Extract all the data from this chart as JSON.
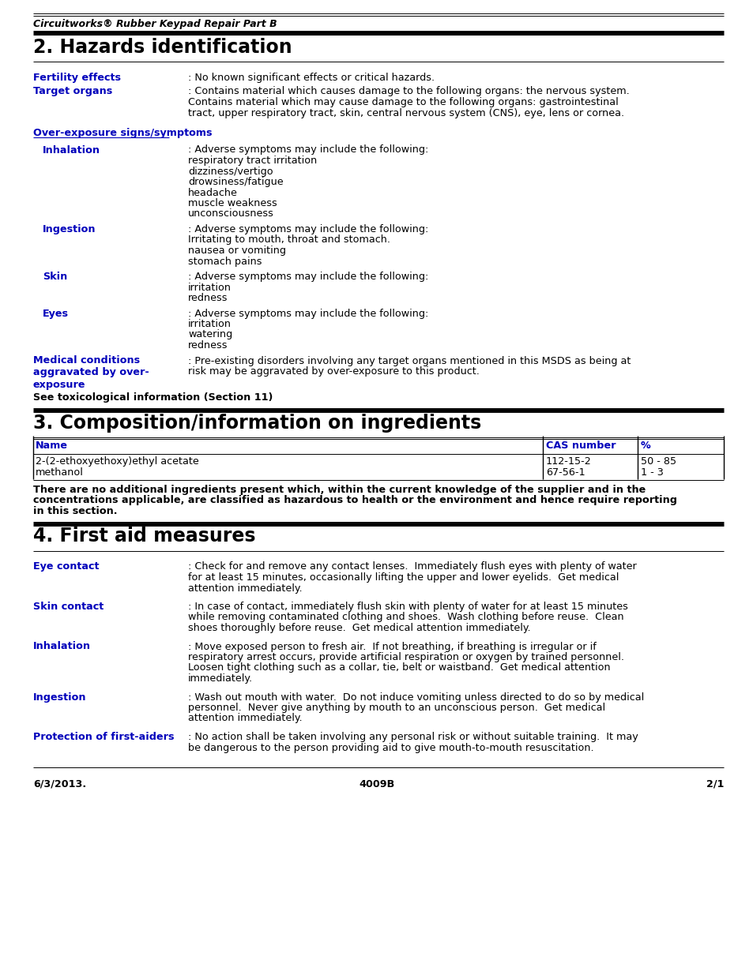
{
  "bg_color": "#ffffff",
  "text_color": "#000000",
  "blue_color": "#0000bb",
  "header_italic": "Circuitworks® Rubber Keypad Repair Part B",
  "section2_title": "2. Hazards identification",
  "section3_title": "3. Composition/information on ingredients",
  "section4_title": "4. First aid measures",
  "footer_left": "6/3/2013.",
  "footer_center": "4009B",
  "footer_right": "2/1",
  "table_rows": [
    [
      "2-(2-ethoxyethoxy)ethyl acetate",
      "112-15-2",
      "50 - 85"
    ],
    [
      "methanol",
      "67-56-1",
      "1 - 3"
    ]
  ],
  "table_note_lines": [
    "There are no additional ingredients present which, within the current knowledge of the supplier and in the",
    "concentrations applicable, are classified as hazardous to health or the environment and hence require reporting",
    "in this section."
  ],
  "overexposure_header": "Over-exposure signs/symptoms",
  "medical_label": "Medical conditions\naggravated by over-\nexposure",
  "medical_text_lines": [
    ": Pre-existing disorders involving any target organs mentioned in this MSDS as being at",
    "risk may be aggravated by over-exposure to this product."
  ],
  "see_tox": "See toxicological information (Section 11)",
  "fertility_label": "Fertility effects",
  "fertility_text": ": No known significant effects or critical hazards.",
  "target_label": "Target organs",
  "target_text_lines": [
    ": Contains material which causes damage to the following organs: the nervous system.",
    "Contains material which may cause damage to the following organs: gastrointestinal",
    "tract, upper respiratory tract, skin, central nervous system (CNS), eye, lens or cornea."
  ],
  "inhalation_label": "Inhalation",
  "inhalation_text_lines": [
    ": Adverse symptoms may include the following:",
    "respiratory tract irritation",
    "dizziness/vertigo",
    "drowsiness/fatigue",
    "headache",
    "muscle weakness",
    "unconsciousness"
  ],
  "ingestion_label": "Ingestion",
  "ingestion_text_lines": [
    ": Adverse symptoms may include the following:",
    "Irritating to mouth, throat and stomach.",
    "nausea or vomiting",
    "stomach pains"
  ],
  "skin_label": "Skin",
  "skin_text_lines": [
    ": Adverse symptoms may include the following:",
    "irritation",
    "redness"
  ],
  "eyes_label": "Eyes",
  "eyes_text_lines": [
    ": Adverse symptoms may include the following:",
    "irritation",
    "watering",
    "redness"
  ],
  "eye_contact_label": "Eye contact",
  "eye_contact_lines": [
    ": Check for and remove any contact lenses.  Immediately flush eyes with plenty of water",
    "for at least 15 minutes, occasionally lifting the upper and lower eyelids.  Get medical",
    "attention immediately."
  ],
  "skin_contact_label": "Skin contact",
  "skin_contact_lines": [
    ": In case of contact, immediately flush skin with plenty of water for at least 15 minutes",
    "while removing contaminated clothing and shoes.  Wash clothing before reuse.  Clean",
    "shoes thoroughly before reuse.  Get medical attention immediately."
  ],
  "inh2_label": "Inhalation",
  "inh2_lines": [
    ": Move exposed person to fresh air.  If not breathing, if breathing is irregular or if",
    "respiratory arrest occurs, provide artificial respiration or oxygen by trained personnel.",
    "Loosen tight clothing such as a collar, tie, belt or waistband.  Get medical attention",
    "immediately."
  ],
  "ing2_label": "Ingestion",
  "ing2_lines": [
    ": Wash out mouth with water.  Do not induce vomiting unless directed to do so by medical",
    "personnel.  Never give anything by mouth to an unconscious person.  Get medical",
    "attention immediately."
  ],
  "prot_label": "Protection of first-aiders",
  "prot_lines": [
    ": No action shall be taken involving any personal risk or without suitable training.  It may",
    "be dangerous to the person providing aid to give mouth-to-mouth resuscitation."
  ]
}
